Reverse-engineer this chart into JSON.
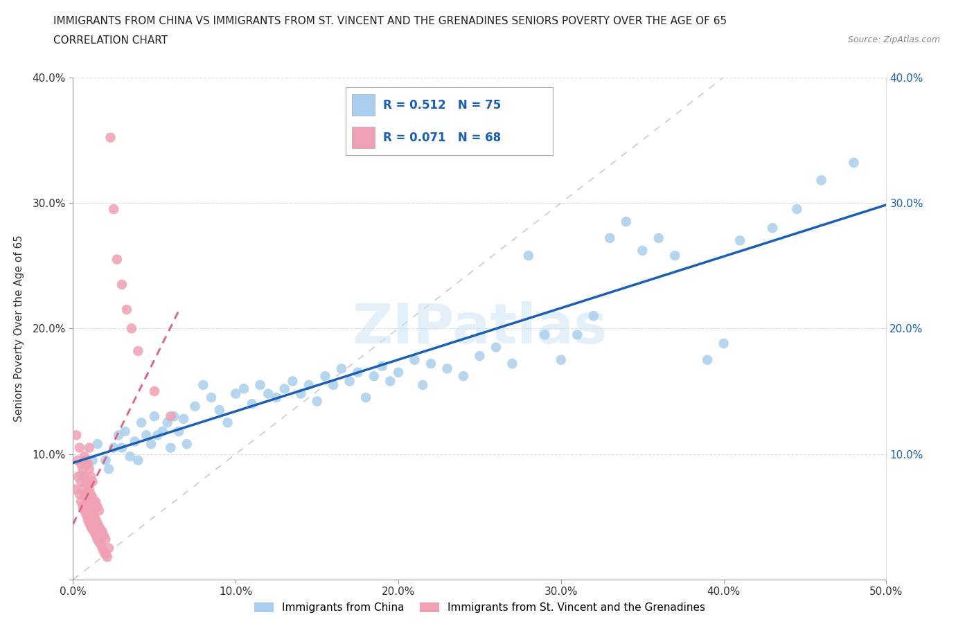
{
  "title_line1": "IMMIGRANTS FROM CHINA VS IMMIGRANTS FROM ST. VINCENT AND THE GRENADINES SENIORS POVERTY OVER THE AGE OF 65",
  "title_line2": "CORRELATION CHART",
  "source_text": "Source: ZipAtlas.com",
  "ylabel": "Seniors Poverty Over the Age of 65",
  "xlim": [
    0.0,
    0.5
  ],
  "ylim": [
    0.0,
    0.4
  ],
  "color_china": "#aacfee",
  "color_svg": "#f0a0b4",
  "regression_color_china": "#1a5fb4",
  "regression_color_svg": "#e06080",
  "background_color": "#ffffff",
  "legend_r1": "R = 0.512",
  "legend_n1": "N = 75",
  "legend_r2": "R = 0.071",
  "legend_n2": "N = 68",
  "china_x": [
    0.005,
    0.012,
    0.015,
    0.02,
    0.022,
    0.025,
    0.028,
    0.03,
    0.032,
    0.035,
    0.038,
    0.04,
    0.042,
    0.045,
    0.048,
    0.05,
    0.052,
    0.055,
    0.058,
    0.06,
    0.062,
    0.065,
    0.068,
    0.07,
    0.075,
    0.08,
    0.085,
    0.09,
    0.095,
    0.1,
    0.105,
    0.11,
    0.115,
    0.12,
    0.125,
    0.13,
    0.135,
    0.14,
    0.145,
    0.15,
    0.155,
    0.16,
    0.165,
    0.17,
    0.175,
    0.18,
    0.185,
    0.19,
    0.195,
    0.2,
    0.21,
    0.215,
    0.22,
    0.23,
    0.24,
    0.25,
    0.26,
    0.27,
    0.28,
    0.29,
    0.3,
    0.31,
    0.32,
    0.33,
    0.34,
    0.35,
    0.36,
    0.37,
    0.39,
    0.4,
    0.41,
    0.43,
    0.445,
    0.46,
    0.48
  ],
  "china_y": [
    0.083,
    0.095,
    0.108,
    0.095,
    0.088,
    0.105,
    0.115,
    0.105,
    0.118,
    0.098,
    0.11,
    0.095,
    0.125,
    0.115,
    0.108,
    0.13,
    0.115,
    0.118,
    0.125,
    0.105,
    0.13,
    0.118,
    0.128,
    0.108,
    0.138,
    0.155,
    0.145,
    0.135,
    0.125,
    0.148,
    0.152,
    0.14,
    0.155,
    0.148,
    0.145,
    0.152,
    0.158,
    0.148,
    0.155,
    0.142,
    0.162,
    0.155,
    0.168,
    0.158,
    0.165,
    0.145,
    0.162,
    0.17,
    0.158,
    0.165,
    0.175,
    0.155,
    0.172,
    0.168,
    0.162,
    0.178,
    0.185,
    0.172,
    0.258,
    0.195,
    0.175,
    0.195,
    0.21,
    0.272,
    0.285,
    0.262,
    0.272,
    0.258,
    0.175,
    0.188,
    0.27,
    0.28,
    0.295,
    0.318,
    0.332
  ],
  "svg_x": [
    0.001,
    0.002,
    0.003,
    0.003,
    0.004,
    0.004,
    0.005,
    0.005,
    0.005,
    0.006,
    0.006,
    0.006,
    0.007,
    0.007,
    0.007,
    0.007,
    0.008,
    0.008,
    0.008,
    0.008,
    0.009,
    0.009,
    0.009,
    0.009,
    0.01,
    0.01,
    0.01,
    0.01,
    0.01,
    0.011,
    0.011,
    0.011,
    0.011,
    0.012,
    0.012,
    0.012,
    0.012,
    0.013,
    0.013,
    0.013,
    0.014,
    0.014,
    0.014,
    0.015,
    0.015,
    0.015,
    0.016,
    0.016,
    0.016,
    0.017,
    0.017,
    0.018,
    0.018,
    0.019,
    0.019,
    0.02,
    0.02,
    0.021,
    0.022,
    0.023,
    0.025,
    0.027,
    0.03,
    0.033,
    0.036,
    0.04,
    0.05,
    0.06
  ],
  "svg_y": [
    0.072,
    0.115,
    0.082,
    0.095,
    0.068,
    0.105,
    0.062,
    0.078,
    0.092,
    0.058,
    0.072,
    0.088,
    0.055,
    0.068,
    0.082,
    0.098,
    0.052,
    0.065,
    0.078,
    0.095,
    0.048,
    0.062,
    0.075,
    0.092,
    0.045,
    0.058,
    0.072,
    0.088,
    0.105,
    0.042,
    0.055,
    0.068,
    0.082,
    0.04,
    0.052,
    0.065,
    0.078,
    0.038,
    0.05,
    0.062,
    0.035,
    0.048,
    0.062,
    0.032,
    0.045,
    0.058,
    0.03,
    0.042,
    0.055,
    0.028,
    0.04,
    0.025,
    0.038,
    0.022,
    0.035,
    0.02,
    0.032,
    0.018,
    0.025,
    0.352,
    0.295,
    0.255,
    0.235,
    0.215,
    0.2,
    0.182,
    0.15,
    0.13
  ]
}
